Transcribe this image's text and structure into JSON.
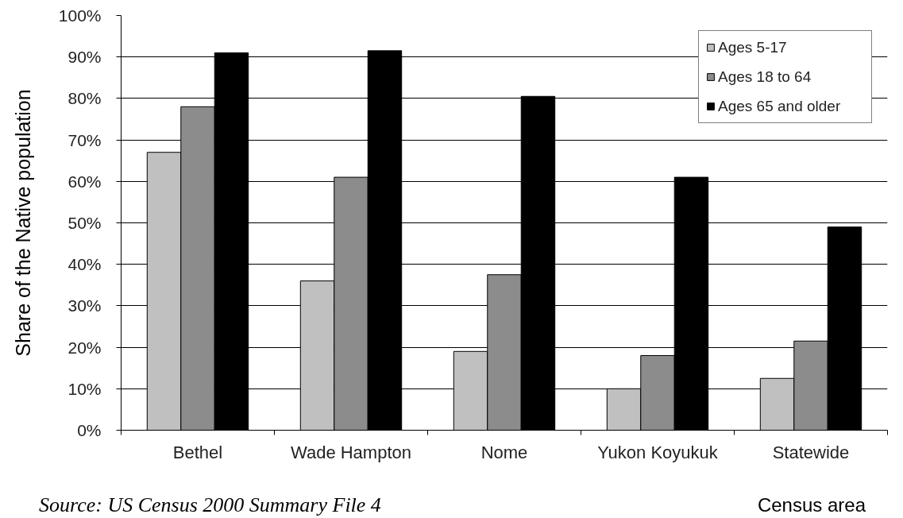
{
  "chart_data": {
    "type": "bar",
    "ylabel": "Share of the Native population",
    "xlabel": "Census area",
    "annotations": [
      "Source: US Census 2000 Summary File 4"
    ],
    "categories": [
      "Bethel",
      "Wade Hampton",
      "Nome",
      "Yukon Koyukuk",
      "Statewide"
    ],
    "series": [
      {
        "name": "Ages 5-17",
        "color": "#c0c0c0",
        "values": [
          67,
          36,
          19,
          10,
          12.5
        ]
      },
      {
        "name": "Ages 18 to 64",
        "color": "#8c8c8c",
        "values": [
          78,
          61,
          37.5,
          18,
          21.5
        ]
      },
      {
        "name": "Ages 65 and older",
        "color": "#000000",
        "values": [
          91,
          91.5,
          80.5,
          61,
          49
        ]
      }
    ],
    "ylim": [
      0,
      100
    ],
    "yticks": [
      {
        "value": 0,
        "label": "0%"
      },
      {
        "value": 10,
        "label": "10%"
      },
      {
        "value": 20,
        "label": "20%"
      },
      {
        "value": 30,
        "label": "30%"
      },
      {
        "value": 40,
        "label": "40%"
      },
      {
        "value": 50,
        "label": "50%"
      },
      {
        "value": 60,
        "label": "60%"
      },
      {
        "value": 70,
        "label": "70%"
      },
      {
        "value": 80,
        "label": "80%"
      },
      {
        "value": 90,
        "label": "90%"
      },
      {
        "value": 100,
        "label": "100%"
      }
    ],
    "grid": "y",
    "legend": "top right"
  }
}
